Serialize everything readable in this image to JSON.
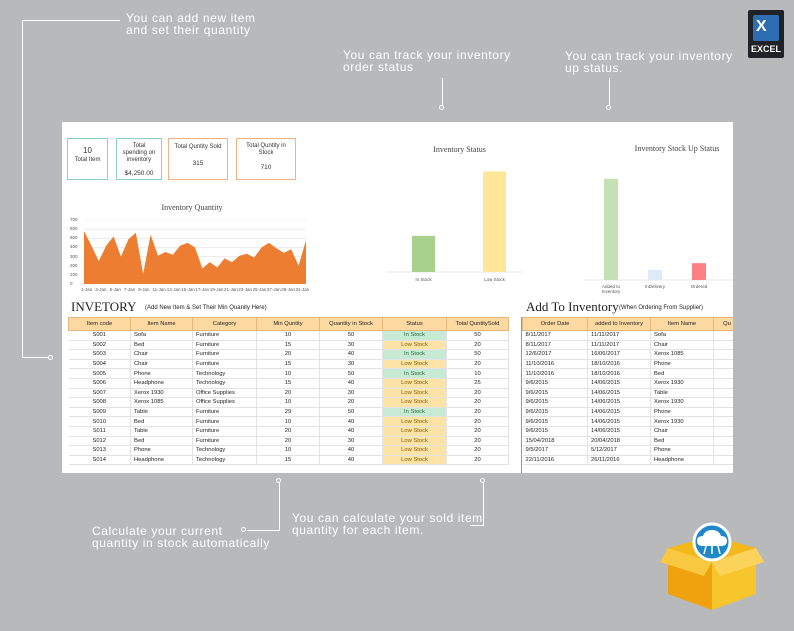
{
  "callouts": {
    "add_item": "You can add new item\nand set their quantity",
    "order_status": "You can track your inventory\norder status",
    "stockup_status": "You can track your inventory\nup status.",
    "calc_stock": "Calculate your current\nquantity in stock automatically",
    "calc_sold": "You can calculate your sold item\nquantity for each item."
  },
  "excel_logo": {
    "letter": "X",
    "label": "EXCEL"
  },
  "kpis": {
    "total_item": {
      "value": "10",
      "label": "Total Item"
    },
    "total_spending": {
      "label": "Total spending on inventory",
      "value": "$4,250.00"
    },
    "total_sold": {
      "label": "Total Quntity Sold",
      "value": "315"
    },
    "total_in_stock": {
      "label": "Total Quntity in Stock",
      "value": "710"
    }
  },
  "chart_data": [
    {
      "type": "area",
      "title": "Inventory Quantity",
      "y_ticks": [
        "700",
        "600",
        "500",
        "400",
        "300",
        "200",
        "100",
        "0"
      ],
      "ylim": [
        0,
        700
      ],
      "x_ticks": [
        "1-Jan",
        "3-Jan",
        "5-Jan",
        "7-Jan",
        "9-Jan",
        "11-Jan",
        "13-Jan",
        "15-Jan",
        "17-Jan",
        "19-Jan",
        "21-Jan",
        "23-Jan",
        "25-Jan",
        "27-Jan",
        "29-Jan",
        "31-Jan"
      ],
      "values": [
        580,
        420,
        250,
        420,
        520,
        300,
        490,
        560,
        110,
        540,
        310,
        350,
        320,
        420,
        450,
        400,
        170,
        240,
        180,
        280,
        240,
        310,
        330,
        290,
        400,
        450,
        390,
        340,
        380,
        200,
        480
      ],
      "color": "#ed7d31"
    },
    {
      "type": "bar",
      "title": "Inventory Status",
      "categories": [
        "In Stock",
        "Low Stock"
      ],
      "values": [
        230,
        640
      ],
      "colors": [
        "#a9d18e",
        "#ffe699"
      ],
      "ylim": [
        0,
        700
      ]
    },
    {
      "type": "bar",
      "title": "Inventory Stock Up Status",
      "categories": [
        "Added to Inventory",
        "InDelivery",
        "Ordered"
      ],
      "values": [
        600,
        60,
        100
      ],
      "colors": [
        "#c5e0b4",
        "#deebf7",
        "#ff8080"
      ],
      "ylim": [
        0,
        700
      ]
    }
  ],
  "inventory": {
    "title": "INVETORY",
    "subtitle": "(Add New Item & Set Their Min Quanity Here)",
    "headers": [
      "Item code",
      "Item Name",
      "Category",
      "Min Quntity",
      "Quantity in Stock",
      "Status",
      "Total QuntitySold"
    ],
    "rows": [
      [
        "S001",
        "Sofa",
        "Furniture",
        "10",
        "50",
        "In Stock",
        "50"
      ],
      [
        "S002",
        "Bed",
        "Furniture",
        "15",
        "30",
        "Low Stock",
        "20"
      ],
      [
        "S003",
        "Chair",
        "Furniture",
        "20",
        "40",
        "In Stock",
        "50"
      ],
      [
        "S004",
        "Chair",
        "Furniture",
        "15",
        "30",
        "Low Stock",
        "20"
      ],
      [
        "S005",
        "Phone",
        "Technology",
        "10",
        "50",
        "In Stock",
        "10"
      ],
      [
        "S006",
        "Headphone",
        "Technology",
        "15",
        "40",
        "Low Stock",
        "25"
      ],
      [
        "S007",
        "Xerox 1930",
        "Office Supplies",
        "20",
        "30",
        "Low Stock",
        "20"
      ],
      [
        "S008",
        "Xerox 1085",
        "Office Supplies",
        "10",
        "20",
        "Low Stock",
        "20"
      ],
      [
        "S009",
        "Table",
        "Furniture",
        "29",
        "50",
        "In Stock",
        "20"
      ],
      [
        "S010",
        "Bed",
        "Furniture",
        "10",
        "40",
        "Low Stock",
        "20"
      ],
      [
        "S011",
        "Table",
        "Furniture",
        "20",
        "40",
        "Low Stock",
        "20"
      ],
      [
        "S012",
        "Bed",
        "Furniture",
        "20",
        "30",
        "Low Stock",
        "20"
      ],
      [
        "S013",
        "Phone",
        "Technology",
        "10",
        "40",
        "Low Stock",
        "20"
      ],
      [
        "S014",
        "Headphone",
        "Technology",
        "15",
        "40",
        "Low Stock",
        "20"
      ]
    ]
  },
  "add_to_inventory": {
    "title": "Add To Inventory",
    "subtitle": "(When Ordering From Supplier)",
    "headers": [
      "Order Date",
      "added to Inventory",
      "Item Name",
      "Qu"
    ],
    "rows": [
      [
        "8/11/2017",
        "11/11/2017",
        "Sofa",
        ""
      ],
      [
        "8/11/2017",
        "11/11/2017",
        "Chair",
        ""
      ],
      [
        "12/6/2017",
        "16/06/2017",
        "Xerox 1085",
        ""
      ],
      [
        "11/10/2016",
        "18/10/2016",
        "Phone",
        ""
      ],
      [
        "11/10/2016",
        "18/10/2016",
        "Bed",
        ""
      ],
      [
        "9/6/2015",
        "14/06/2015",
        "Xerox 1930",
        ""
      ],
      [
        "9/6/2015",
        "14/06/2015",
        "Table",
        ""
      ],
      [
        "9/6/2015",
        "14/06/2015",
        "Xerox 1930",
        ""
      ],
      [
        "9/6/2015",
        "14/06/2015",
        "Phone",
        ""
      ],
      [
        "9/6/2015",
        "14/06/2015",
        "Xerox 1930",
        ""
      ],
      [
        "9/6/2015",
        "14/06/2015",
        "Chair",
        ""
      ],
      [
        "15/04/2018",
        "20/04/2018",
        "Bed",
        ""
      ],
      [
        "9/5/2017",
        "5/12/2017",
        "Phone",
        ""
      ],
      [
        "22/11/2016",
        "26/11/2016",
        "Headphone",
        ""
      ]
    ]
  }
}
